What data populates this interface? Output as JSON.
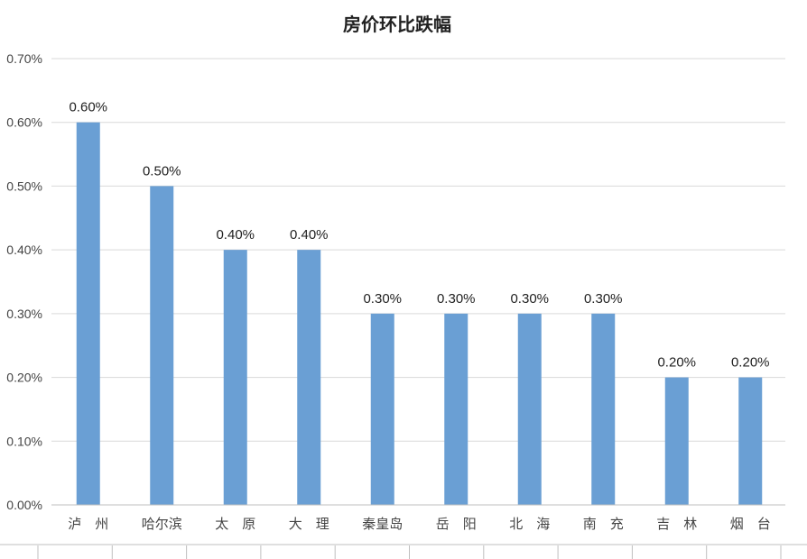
{
  "chart_data": {
    "type": "bar",
    "title": "房价环比跌幅",
    "categories": [
      "泸　州",
      "哈尔滨",
      "太　原",
      "大　理",
      "秦皇岛",
      "岳　阳",
      "北　海",
      "南　充",
      "吉　林",
      "烟　台"
    ],
    "values": [
      0.6,
      0.5,
      0.4,
      0.4,
      0.3,
      0.3,
      0.3,
      0.3,
      0.2,
      0.2
    ],
    "data_labels": [
      "0.60%",
      "0.50%",
      "0.40%",
      "0.40%",
      "0.30%",
      "0.30%",
      "0.30%",
      "0.30%",
      "0.20%",
      "0.20%"
    ],
    "y_ticks": [
      "0.00%",
      "0.10%",
      "0.20%",
      "0.30%",
      "0.40%",
      "0.50%",
      "0.60%",
      "0.70%"
    ],
    "ylim": [
      0,
      0.7
    ],
    "ystep": 0.1,
    "grid": true,
    "legend": "none",
    "bar_color": "#6a9fd4"
  }
}
